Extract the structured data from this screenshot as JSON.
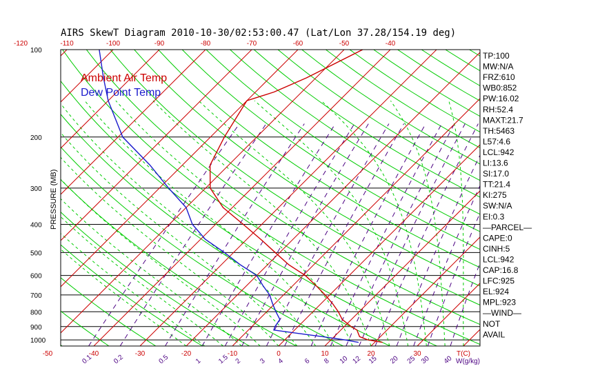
{
  "chart_data": {
    "type": "line",
    "title": "AIRS SkewT Diagram 2010-10-30/02:53:00.47 (Lat/Lon 37.28/154.19 deg)",
    "ylabel": "PRESSURE (MB)",
    "xlabel": "T(C)",
    "mixing_ratio_label": "W(g/kg)",
    "pressure_range": [
      100,
      1050
    ],
    "pressure_ticks": [
      100,
      200,
      300,
      400,
      500,
      600,
      700,
      800,
      900,
      1000
    ],
    "top_temp_ticks": [
      -120,
      -110,
      -100,
      -90,
      -80,
      -70,
      -60,
      -50,
      -40
    ],
    "bottom_temp_ticks": [
      -50,
      -40,
      -30,
      -20,
      -10,
      0,
      10,
      20,
      30
    ],
    "mixing_ratio_ticks": [
      "0.1",
      "0.2",
      "0.5",
      "1",
      "1.5",
      "2",
      "3",
      "4",
      "6",
      "8",
      "10",
      "12",
      "15",
      "20",
      "25",
      "30",
      "40"
    ],
    "legend": [
      "Ambient Air Temp",
      "Dew Point Temp"
    ],
    "series": [
      {
        "name": "Ambient Air Temp",
        "color": "#cc0000",
        "points": [
          {
            "p": 1020,
            "t": 21.7
          },
          {
            "p": 1000,
            "t": 18.0
          },
          {
            "p": 975,
            "t": 15.5
          },
          {
            "p": 950,
            "t": 14.5
          },
          {
            "p": 925,
            "t": 13.5
          },
          {
            "p": 900,
            "t": 11.5
          },
          {
            "p": 850,
            "t": 8.0
          },
          {
            "p": 800,
            "t": 5.5
          },
          {
            "p": 750,
            "t": 2.5
          },
          {
            "p": 700,
            "t": -1.0
          },
          {
            "p": 650,
            "t": -5.0
          },
          {
            "p": 600,
            "t": -9.5
          },
          {
            "p": 550,
            "t": -15.5
          },
          {
            "p": 500,
            "t": -21.0
          },
          {
            "p": 450,
            "t": -27.0
          },
          {
            "p": 400,
            "t": -34.0
          },
          {
            "p": 350,
            "t": -42.0
          },
          {
            "p": 300,
            "t": -49.0
          },
          {
            "p": 250,
            "t": -54.0
          },
          {
            "p": 200,
            "t": -57.0
          },
          {
            "p": 150,
            "t": -60.0
          },
          {
            "p": 140,
            "t": -56.0
          },
          {
            "p": 125,
            "t": -52.0
          },
          {
            "p": 100,
            "t": -46.0
          }
        ]
      },
      {
        "name": "Dew Point Temp",
        "color": "#1a1acc",
        "points": [
          {
            "p": 1020,
            "t": 16.5
          },
          {
            "p": 1000,
            "t": 13.0
          },
          {
            "p": 975,
            "t": 7.5
          },
          {
            "p": 950,
            "t": 1.5
          },
          {
            "p": 925,
            "t": -4.5
          },
          {
            "p": 900,
            "t": -5.0
          },
          {
            "p": 850,
            "t": -5.5
          },
          {
            "p": 800,
            "t": -8.0
          },
          {
            "p": 750,
            "t": -10.5
          },
          {
            "p": 700,
            "t": -13.0
          },
          {
            "p": 650,
            "t": -16.5
          },
          {
            "p": 600,
            "t": -20.0
          },
          {
            "p": 550,
            "t": -26.0
          },
          {
            "p": 500,
            "t": -32.0
          },
          {
            "p": 450,
            "t": -39.0
          },
          {
            "p": 400,
            "t": -45.0
          },
          {
            "p": 350,
            "t": -50.0
          },
          {
            "p": 300,
            "t": -58.0
          },
          {
            "p": 250,
            "t": -67.0
          },
          {
            "p": 200,
            "t": -79.0
          },
          {
            "p": 150,
            "t": -90.0
          },
          {
            "p": 125,
            "t": -96.0
          },
          {
            "p": 100,
            "t": -103.0
          }
        ]
      }
    ],
    "indices": [
      "TP:100",
      "MW:N/A",
      "FRZ:610",
      "WB0:852",
      "PW:16.02",
      "RH:52.4",
      "MAXT:21.7",
      "TH:5463",
      "L57:4.6",
      "LCL:942",
      "LI:13.6",
      "SI:17.0",
      "TT:21.4",
      "KI:275",
      "SW:N/A",
      "EI:0.3",
      "—PARCEL—",
      "CAPE:0",
      "CINH:5",
      "LCL:942",
      "CAP:16.8",
      "LFC:925",
      "EL:924",
      "MPL:923",
      "—WIND—",
      "NOT",
      "AVAIL"
    ]
  },
  "colors": {
    "air": "#cc0000",
    "dew": "#1a1acc",
    "isotherm": "#cc0000",
    "dry_adiabat": "#00cc00",
    "moist_adiabat": "#00cc00",
    "mixing_ratio": "#4b0082"
  }
}
